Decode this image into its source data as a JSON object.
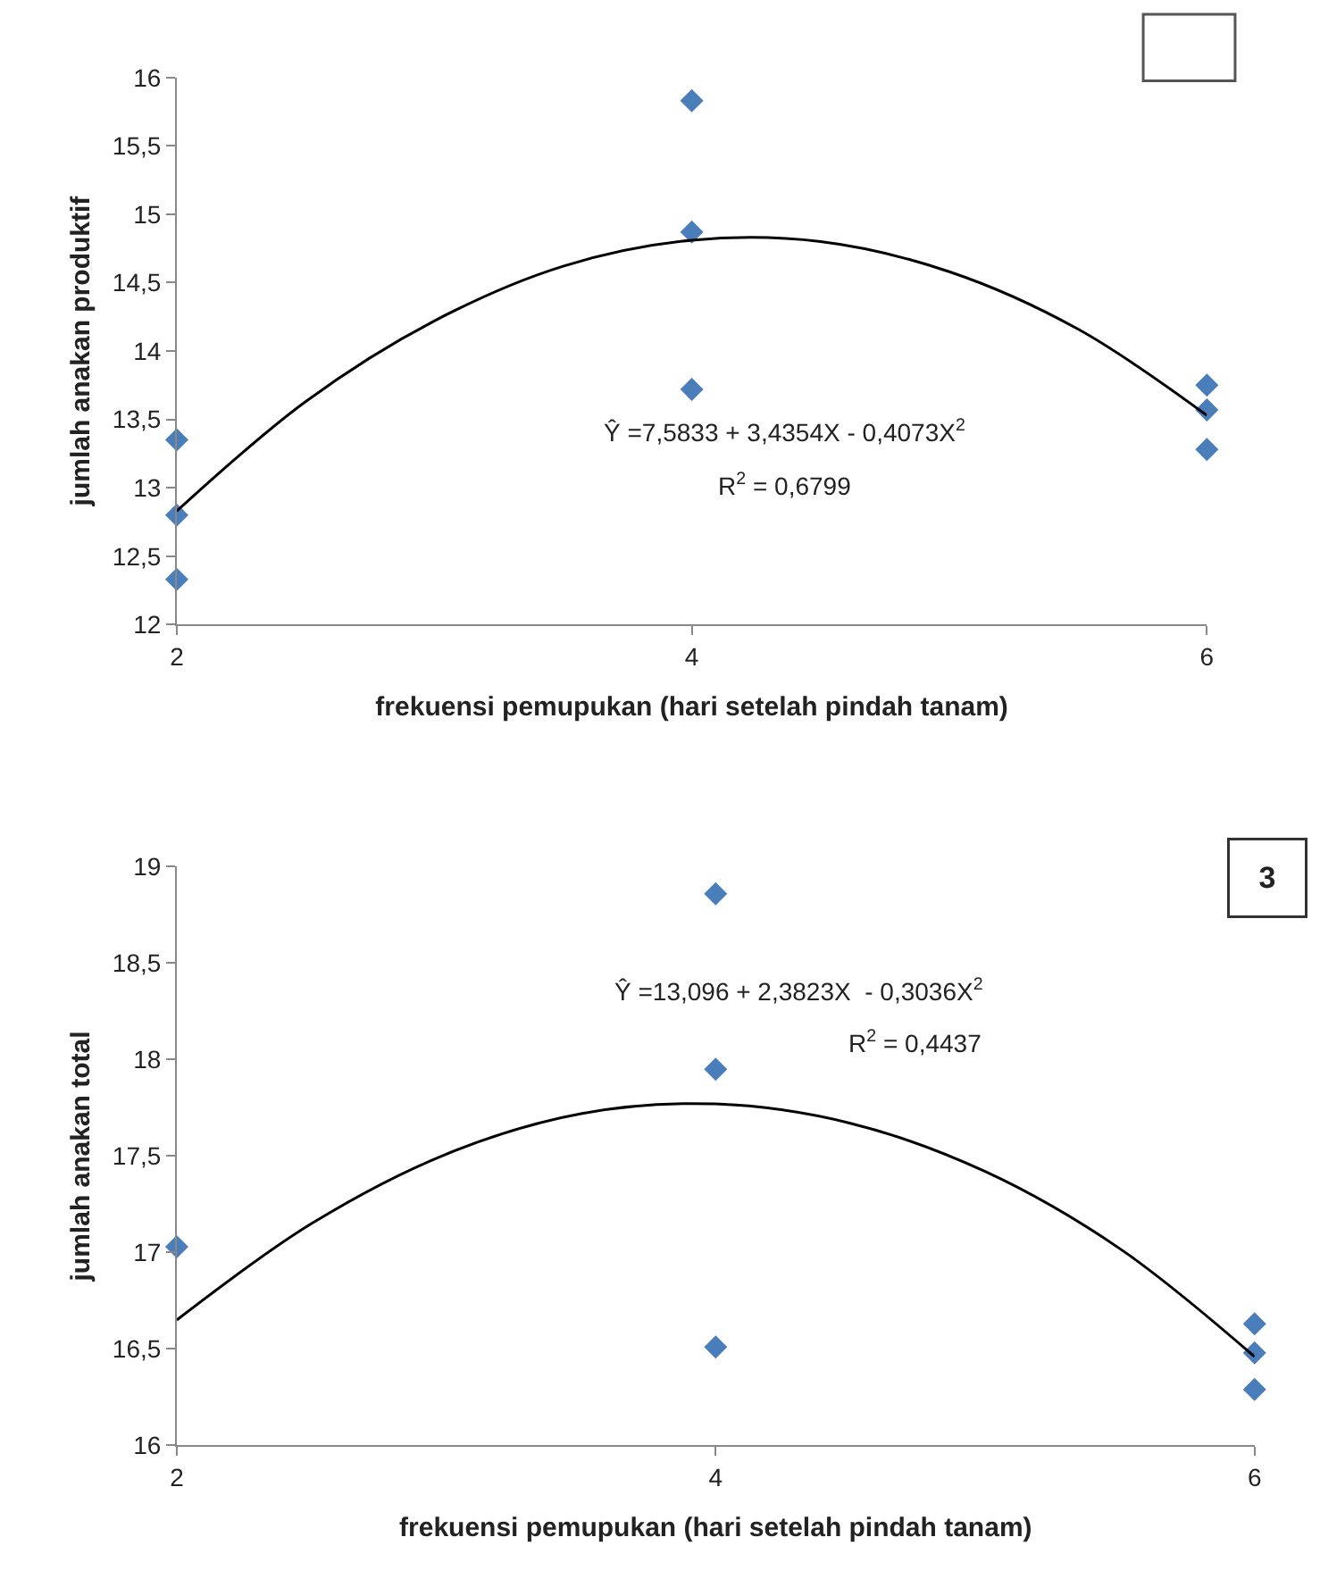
{
  "chart_data": [
    {
      "type": "scatter",
      "xlabel": "frekuensi pemupukan (hari setelah pindah tanam)",
      "ylabel": "jumlah anakan produktif",
      "xlim": [
        2,
        6
      ],
      "xticks": [
        2,
        4,
        6
      ],
      "ylim": [
        12,
        16
      ],
      "yticks": [
        12,
        {
          "value": 12.5,
          "label": "12,5"
        },
        13,
        {
          "value": 13.5,
          "label": "13,5"
        },
        14,
        {
          "value": 14.5,
          "label": "14,5"
        },
        15,
        {
          "value": 15.5,
          "label": "15,5"
        },
        16
      ],
      "series": [
        {
          "type": "scatter",
          "marker": "diamond",
          "color": "#4a7ebb",
          "x": [
            2,
            2,
            2,
            4,
            4,
            4,
            6,
            6,
            6
          ],
          "values": [
            13.35,
            12.8,
            12.33,
            15.83,
            14.87,
            13.72,
            13.75,
            13.57,
            13.28
          ]
        },
        {
          "type": "line",
          "marker": "none",
          "line_style": "solid",
          "color": "#000000",
          "x": [
            2,
            2.5,
            3,
            3.5,
            4,
            4.5,
            5,
            5.5,
            6
          ],
          "values": [
            12.83,
            13.63,
            14.22,
            14.62,
            14.81,
            14.8,
            14.58,
            14.16,
            13.53
          ]
        }
      ],
      "annotations": [
        "Ŷ =7,5833 + 3,4354X - 0,4073X$^{2}$",
        "R$^{2}$ = 0,6799"
      ]
    },
    {
      "type": "scatter",
      "xlabel": "frekuensi pemupukan (hari setelah pindah tanam)",
      "ylabel": "jumlah anakan total",
      "xlim": [
        2,
        6
      ],
      "xticks": [
        2,
        4,
        6
      ],
      "ylim": [
        16,
        19
      ],
      "yticks": [
        16,
        {
          "value": 16.5,
          "label": "16,5"
        },
        17,
        {
          "value": 17.5,
          "label": "17,5"
        },
        18,
        {
          "value": 18.5,
          "label": "18,5"
        },
        19
      ],
      "series": [
        {
          "type": "scatter",
          "marker": "diamond",
          "color": "#4a7ebb",
          "x": [
            2,
            4,
            4,
            4,
            6,
            6,
            6
          ],
          "values": [
            17.03,
            18.86,
            17.95,
            16.51,
            16.63,
            16.48,
            16.29
          ]
        },
        {
          "type": "line",
          "marker": "none",
          "line_style": "solid",
          "color": "#000000",
          "x": [
            2,
            2.5,
            3,
            3.5,
            4,
            4.5,
            5,
            5.5,
            6
          ],
          "values": [
            16.65,
            17.15,
            17.51,
            17.72,
            17.77,
            17.67,
            17.42,
            17.02,
            16.46
          ]
        }
      ],
      "annotations": [
        "Ŷ =13,096 + 2,3823X  - 0,3036X$^{2}$",
        "R$^{2}$ = 0,4437",
        "3"
      ]
    }
  ]
}
